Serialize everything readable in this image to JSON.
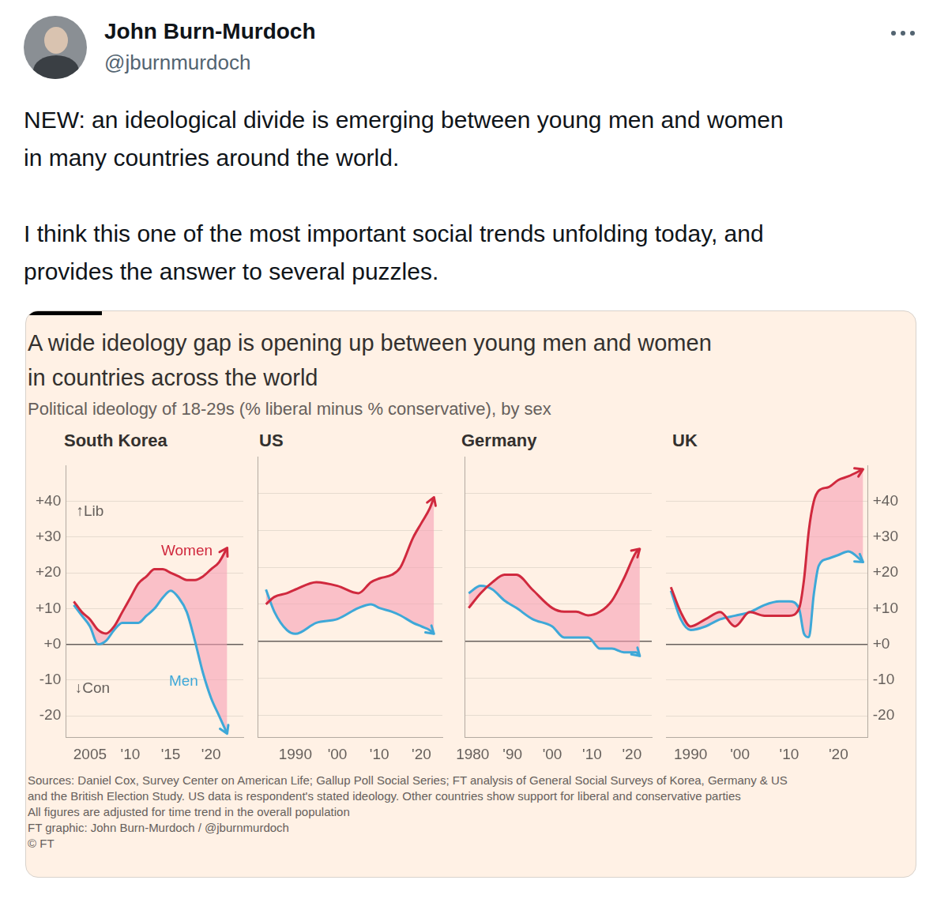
{
  "tweet": {
    "name": "John Burn-Murdoch",
    "handle": "@jburnmurdoch",
    "text": [
      [
        "NEW: an ideological divide is emerging between young men and women",
        "in many countries around the world."
      ],
      [
        "I think this one of the most important social trends unfolding today, and",
        "provides the answer to several puzzles."
      ]
    ]
  },
  "figure": {
    "title": [
      "A wide ideology gap is opening up between young men and women",
      "in countries across the world"
    ],
    "subtitle": "Political ideology of 18-29s (% liberal minus % conservative), by sex",
    "sources": [
      "Sources: Daniel Cox, Survey Center on American Life; Gallup Poll Social Series; FT analysis of General Social Surveys of Korea, Germany & US",
      "and the British Election Study. US data is respondent's stated ideology. Other countries show support for liberal and conservative parties",
      "All figures are adjusted for time trend in the overall population",
      "FT graphic: John Burn-Murdoch / @jburnmurdoch",
      "© FT"
    ]
  },
  "chart_data": [
    {
      "type": "line",
      "title": "South Korea",
      "x": [
        2003,
        2004,
        2005,
        2006,
        2007,
        2008,
        2009,
        2010,
        2011,
        2012,
        2013,
        2014,
        2015,
        2016,
        2017,
        2018,
        2019,
        2020,
        2021,
        2022
      ],
      "series": [
        {
          "name": "Women",
          "color": "#d0293e",
          "values": [
            12,
            9,
            7,
            4,
            3,
            5,
            9,
            13,
            17,
            19,
            21,
            21,
            20,
            19,
            18,
            18,
            19,
            21,
            23,
            27
          ]
        },
        {
          "name": "Men",
          "color": "#3ea8d8",
          "values": [
            11,
            8,
            5,
            0,
            1,
            4,
            6,
            6,
            6,
            8,
            10,
            13,
            15,
            13,
            9,
            1,
            -8,
            -15,
            -20,
            -25
          ]
        }
      ],
      "xlim": [
        2002,
        2024
      ],
      "xticks": [
        2005,
        {
          "value": 2010,
          "label": "'10"
        },
        {
          "value": 2015,
          "label": "'15"
        },
        {
          "value": 2020,
          "label": "'20"
        }
      ],
      "ylim": [
        -26,
        50
      ],
      "yticks": [
        {
          "value": -20,
          "label": "-20"
        },
        {
          "value": -10,
          "label": "-10"
        },
        {
          "value": 0,
          "label": "+0"
        },
        {
          "value": 10,
          "label": "+10"
        },
        {
          "value": 20,
          "label": "+20"
        },
        {
          "value": 30,
          "label": "+30"
        },
        {
          "value": 40,
          "label": "+40"
        }
      ],
      "grid": true,
      "annotations": [
        {
          "text": "↑Lib",
          "x": 2005,
          "y": 37,
          "color": "#66605c"
        },
        {
          "text": "↓Con",
          "x": 2005.3,
          "y": -12.5,
          "color": "#66605c"
        },
        {
          "text": "Women",
          "x": 2017,
          "y": 26,
          "color": "#d0293e"
        },
        {
          "text": "Men",
          "x": 2016.6,
          "y": -10.5,
          "color": "#3ea8d8"
        }
      ]
    },
    {
      "type": "line",
      "title": "US",
      "x": [
        1983,
        1985,
        1988,
        1990,
        1995,
        2000,
        2005,
        2008,
        2010,
        2013,
        2015,
        2018,
        2020,
        2022,
        2023
      ],
      "series": [
        {
          "name": "Women",
          "color": "#d0293e",
          "values": [
            10,
            12,
            13,
            14,
            16,
            15,
            13,
            16,
            17,
            18,
            20,
            28,
            32,
            36,
            39
          ]
        },
        {
          "name": "Men",
          "color": "#3ea8d8",
          "values": [
            14,
            8,
            3,
            2,
            5,
            6,
            9,
            10,
            9,
            8,
            7,
            5,
            4,
            3,
            2
          ]
        }
      ],
      "xlim": [
        1981,
        2025
      ],
      "xticks": [
        1990,
        {
          "value": 2000,
          "label": "'00"
        },
        {
          "value": 2010,
          "label": "'10"
        },
        {
          "value": 2020,
          "label": "'20"
        }
      ],
      "ylim": [
        -26,
        50
      ],
      "yticks": [
        {
          "value": -20,
          "label": "-20"
        },
        {
          "value": -10,
          "label": "-10"
        },
        {
          "value": 0,
          "label": "+0"
        },
        {
          "value": 10,
          "label": "+10"
        },
        {
          "value": 20,
          "label": "+20"
        },
        {
          "value": 30,
          "label": "+30"
        },
        {
          "value": 40,
          "label": "+40"
        }
      ],
      "grid": true,
      "tick_labels": "x"
    },
    {
      "type": "line",
      "title": "Germany",
      "x": [
        1979,
        1982,
        1985,
        1988,
        1991,
        1995,
        2000,
        2003,
        2006,
        2009,
        2012,
        2015,
        2018,
        2021,
        2022
      ],
      "series": [
        {
          "name": "Women",
          "color": "#d0293e",
          "values": [
            9,
            13,
            16,
            18,
            18,
            14,
            9,
            8,
            8,
            7,
            8,
            11,
            17,
            24,
            25
          ]
        },
        {
          "name": "Men",
          "color": "#3ea8d8",
          "values": [
            13,
            15,
            14,
            11,
            9,
            6,
            4,
            1,
            1,
            1,
            -2,
            -2,
            -3,
            -3,
            -4
          ]
        }
      ],
      "xlim": [
        1978,
        2025
      ],
      "xticks": [
        1980,
        {
          "value": 1990,
          "label": "'90"
        },
        {
          "value": 2000,
          "label": "'00"
        },
        {
          "value": 2010,
          "label": "'10"
        },
        {
          "value": 2020,
          "label": "'20"
        }
      ],
      "ylim": [
        -26,
        50
      ],
      "yticks": [
        {
          "value": -20,
          "label": "-20"
        },
        {
          "value": -10,
          "label": "-10"
        },
        {
          "value": 0,
          "label": "+0"
        },
        {
          "value": 10,
          "label": "+10"
        },
        {
          "value": 20,
          "label": "+20"
        },
        {
          "value": 30,
          "label": "+30"
        },
        {
          "value": 40,
          "label": "+40"
        }
      ],
      "grid": true,
      "tick_labels": "x"
    },
    {
      "type": "line",
      "title": "UK",
      "x": [
        1986,
        1988,
        1990,
        1993,
        1996,
        1999,
        2002,
        2005,
        2008,
        2010,
        2012,
        2013,
        2014,
        2015,
        2016,
        2018,
        2020,
        2022,
        2025
      ],
      "series": [
        {
          "name": "Women",
          "color": "#d0293e",
          "values": [
            16,
            9,
            5,
            7,
            9,
            5,
            9,
            8,
            8,
            8,
            10,
            18,
            32,
            40,
            43,
            44,
            46,
            47,
            49
          ]
        },
        {
          "name": "Men",
          "color": "#3ea8d8",
          "values": [
            15,
            7,
            4,
            5,
            7,
            8,
            9,
            11,
            12,
            12,
            10,
            3,
            2,
            14,
            22,
            24,
            25,
            26,
            23
          ]
        }
      ],
      "xlim": [
        1985,
        2026
      ],
      "xticks": [
        1990,
        {
          "value": 2000,
          "label": "'00"
        },
        {
          "value": 2010,
          "label": "'10"
        },
        {
          "value": 2020,
          "label": "'20"
        }
      ],
      "ylim": [
        -26,
        50
      ],
      "yticks": [
        {
          "value": -20,
          "label": "-20"
        },
        {
          "value": -10,
          "label": "-10"
        },
        {
          "value": 0,
          "label": "+0"
        },
        {
          "value": 10,
          "label": "+10"
        },
        {
          "value": 20,
          "label": "+20"
        },
        {
          "value": 30,
          "label": "+30"
        },
        {
          "value": 40,
          "label": "+40"
        }
      ],
      "grid": true
    }
  ]
}
